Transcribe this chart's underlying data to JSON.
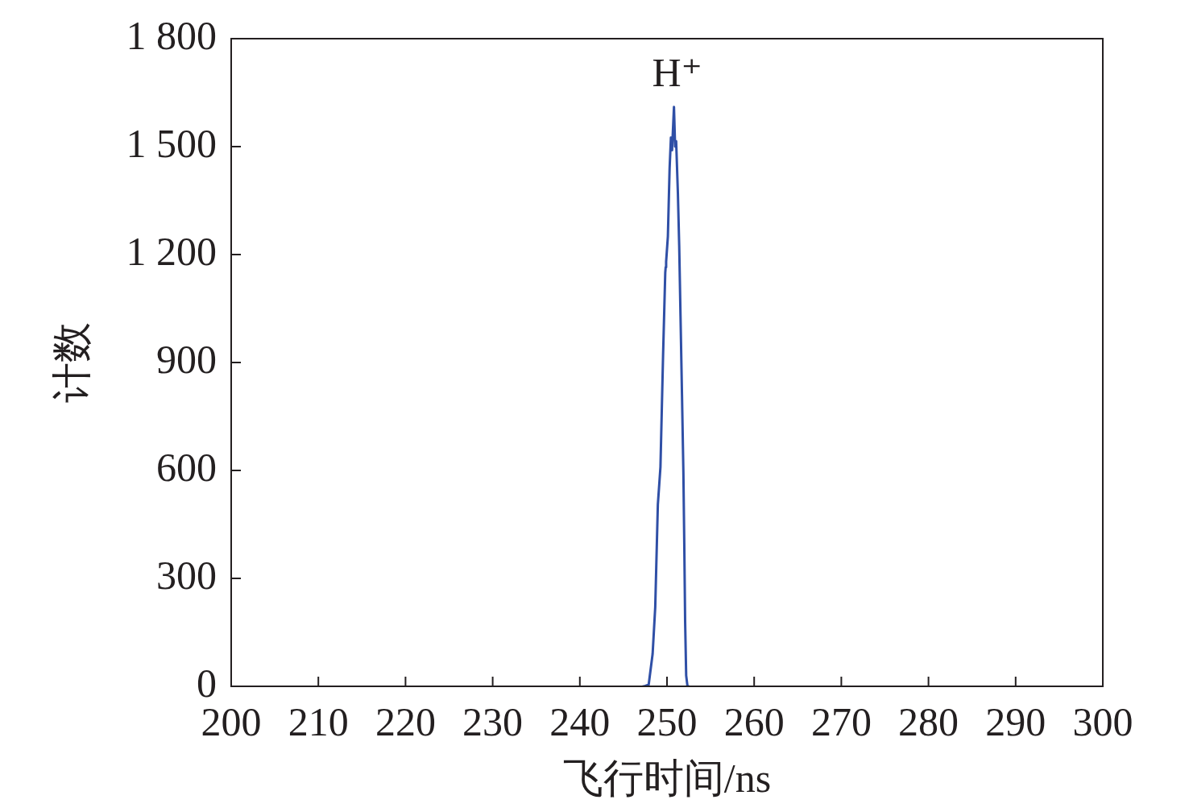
{
  "chart_data": {
    "type": "line",
    "xlabel": "飞行时间/ns",
    "ylabel": "计数",
    "x": [
      247.25,
      247.4,
      247.9,
      248.35,
      248.65,
      248.95,
      249.25,
      249.55,
      249.8,
      249.85,
      249.9,
      250.1,
      250.3,
      250.45,
      250.58,
      250.8,
      250.93,
      251.05,
      251.25,
      251.4,
      251.55,
      251.72,
      251.88,
      251.98,
      252.08,
      252.2,
      252.35,
      252.5
    ],
    "values": [
      0,
      0,
      5,
      90,
      220,
      505,
      610,
      920,
      1150,
      1165,
      1180,
      1250,
      1440,
      1525,
      1490,
      1610,
      1500,
      1515,
      1370,
      1225,
      1030,
      810,
      595,
      400,
      180,
      30,
      0,
      0
    ],
    "color": "#2f4fa6",
    "xlim": [
      200,
      300
    ],
    "xticks": [
      200,
      210,
      220,
      230,
      240,
      250,
      260,
      270,
      280,
      290,
      300
    ],
    "ylim": [
      0,
      1800
    ],
    "yticks": [
      0,
      300,
      600,
      900,
      {
        "value": 1200,
        "label": "1 200"
      },
      {
        "value": 1500,
        "label": "1 500"
      },
      {
        "value": 1800,
        "label": "1 800"
      }
    ],
    "grid": false,
    "legend": false,
    "marker": "none",
    "line_style": "solid",
    "annotations": [
      {
        "text": "H⁺",
        "x": 250.8,
        "y": 1610
      }
    ]
  }
}
